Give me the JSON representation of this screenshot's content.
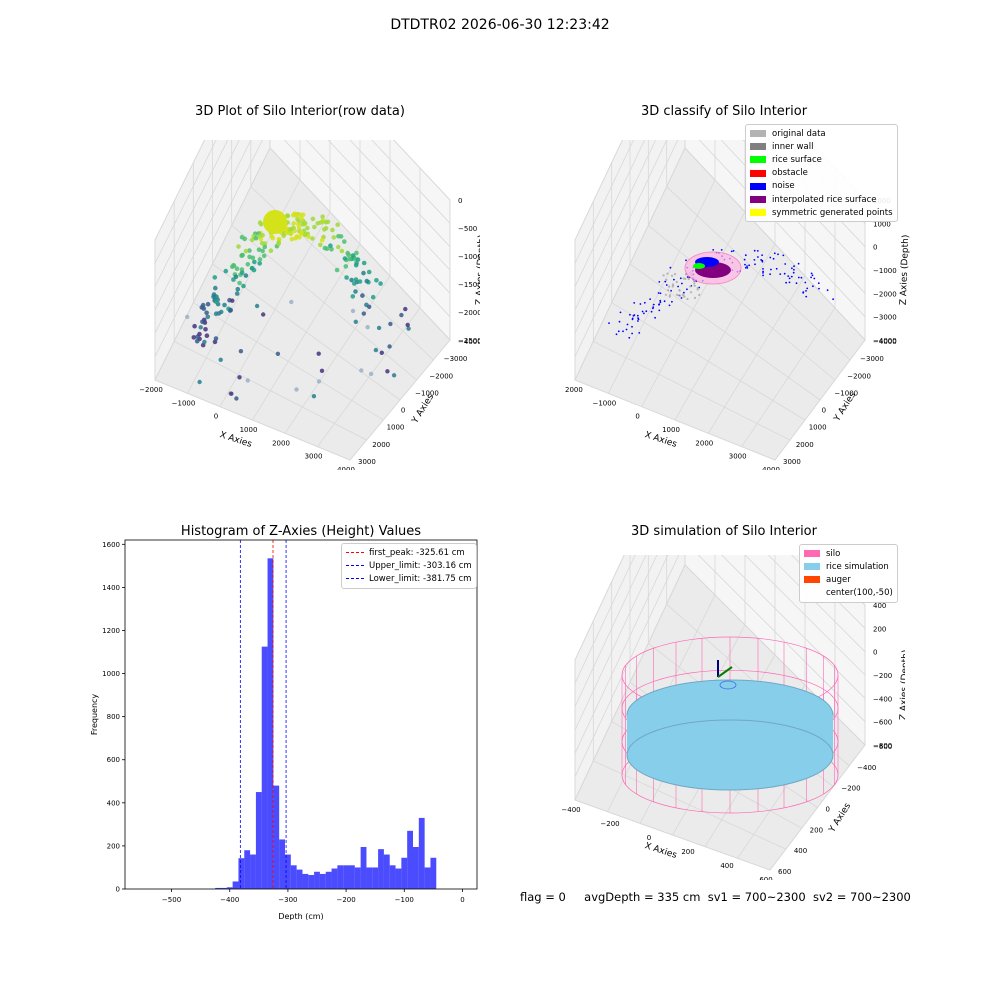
{
  "suptitle": "DTDTR02 2026-06-30 12:23:42",
  "panels": {
    "raw": {
      "title": "3D Plot of Silo Interior(row data)",
      "x_label": "X Axies",
      "y_label": "Y Axies",
      "z_label": "Z Axies (Depth)",
      "x_ticks": [
        "−2000",
        "−1000",
        "0",
        "1000",
        "2000",
        "3000",
        "4000"
      ],
      "y_ticks": [
        "−4000",
        "−3000",
        "−2000",
        "−1000",
        "0",
        "1000",
        "2000",
        "3000"
      ],
      "z_ticks": [
        "0",
        "−500",
        "−1000",
        "−1500",
        "−2000",
        "−2500"
      ]
    },
    "classify": {
      "title": "3D classify of Silo Interior",
      "x_label": "X Axies",
      "y_label": "Y Axies",
      "z_label": "Z Axies (Depth)",
      "x_ticks": [
        "−2000",
        "−1000",
        "0",
        "1000",
        "2000",
        "3000",
        "4000"
      ],
      "y_ticks": [
        "−4000",
        "−3000",
        "−2000",
        "−1000",
        "0",
        "1000",
        "2000",
        "3000"
      ],
      "z_ticks": [
        "2000",
        "1000",
        "0",
        "−1000",
        "−2000",
        "−3000",
        "−4000"
      ],
      "legend": [
        {
          "label": "original data",
          "color": "#b3b3b3"
        },
        {
          "label": "inner wall",
          "color": "#808080"
        },
        {
          "label": "rice surface",
          "color": "#00ff00"
        },
        {
          "label": "obstacle",
          "color": "#ff0000"
        },
        {
          "label": "noise",
          "color": "#0000ff"
        },
        {
          "label": "interpolated rice surface",
          "color": "#800080"
        },
        {
          "label": "symmetric generated points",
          "color": "#ffff00"
        }
      ]
    },
    "simulation": {
      "title": "3D simulation of Silo Interior",
      "x_label": "X Axies",
      "y_label": "Y Axies",
      "z_label": "Z Axies (Depth)",
      "x_ticks": [
        "−400",
        "−200",
        "0",
        "200",
        "400",
        "600"
      ],
      "y_ticks": [
        "−600",
        "−400",
        "−200",
        "0",
        "200",
        "400",
        "600"
      ],
      "z_ticks": [
        "400",
        "200",
        "0",
        "−200",
        "−400",
        "−600",
        "−800"
      ],
      "legend": [
        {
          "label": "silo",
          "color": "#ff69b4"
        },
        {
          "label": "rice simulation",
          "color": "#87ceeb"
        },
        {
          "label": "auger",
          "color": "#ff4500"
        },
        {
          "label": "center(100,-50)",
          "color": "transparent"
        }
      ]
    }
  },
  "status": {
    "flag": "flag = 0",
    "avg_depth": "avgDepth = 335 cm",
    "sv1": "sv1 = 700~2300",
    "sv2": "sv2 = 700~2300"
  },
  "chart_data": {
    "type": "bar",
    "title": "Histogram of Z-Axies (Height) Values",
    "xlabel": "Depth (cm)",
    "ylabel": "Frequency",
    "xlim": [
      -580,
      25
    ],
    "ylim": [
      0,
      1620
    ],
    "x_ticks": [
      -500,
      -400,
      -300,
      -200,
      -100,
      0
    ],
    "y_ticks": [
      0,
      200,
      400,
      600,
      800,
      1000,
      1200,
      1400,
      1600
    ],
    "bar_color": "#0000ff",
    "bins": [
      {
        "x0": -425,
        "x1": -415,
        "v": 5
      },
      {
        "x0": -415,
        "x1": -405,
        "v": 5
      },
      {
        "x0": -405,
        "x1": -395,
        "v": 8
      },
      {
        "x0": -395,
        "x1": -385,
        "v": 35
      },
      {
        "x0": -385,
        "x1": -375,
        "v": 143
      },
      {
        "x0": -375,
        "x1": -365,
        "v": 180
      },
      {
        "x0": -365,
        "x1": -355,
        "v": 160
      },
      {
        "x0": -355,
        "x1": -345,
        "v": 450
      },
      {
        "x0": -345,
        "x1": -335,
        "v": 1125
      },
      {
        "x0": -335,
        "x1": -325,
        "v": 1535
      },
      {
        "x0": -325,
        "x1": -315,
        "v": 480
      },
      {
        "x0": -315,
        "x1": -305,
        "v": 230
      },
      {
        "x0": -305,
        "x1": -295,
        "v": 160
      },
      {
        "x0": -295,
        "x1": -285,
        "v": 110
      },
      {
        "x0": -285,
        "x1": -275,
        "v": 90
      },
      {
        "x0": -275,
        "x1": -265,
        "v": 70
      },
      {
        "x0": -265,
        "x1": -255,
        "v": 65
      },
      {
        "x0": -255,
        "x1": -245,
        "v": 80
      },
      {
        "x0": -245,
        "x1": -235,
        "v": 70
      },
      {
        "x0": -235,
        "x1": -225,
        "v": 80
      },
      {
        "x0": -225,
        "x1": -215,
        "v": 95
      },
      {
        "x0": -215,
        "x1": -205,
        "v": 110
      },
      {
        "x0": -205,
        "x1": -195,
        "v": 110
      },
      {
        "x0": -195,
        "x1": -185,
        "v": 110
      },
      {
        "x0": -185,
        "x1": -175,
        "v": 100
      },
      {
        "x0": -175,
        "x1": -165,
        "v": 195
      },
      {
        "x0": -165,
        "x1": -155,
        "v": 100
      },
      {
        "x0": -155,
        "x1": -145,
        "v": 100
      },
      {
        "x0": -145,
        "x1": -135,
        "v": 185
      },
      {
        "x0": -135,
        "x1": -125,
        "v": 160
      },
      {
        "x0": -125,
        "x1": -115,
        "v": 110
      },
      {
        "x0": -115,
        "x1": -105,
        "v": 95
      },
      {
        "x0": -105,
        "x1": -95,
        "v": 145
      },
      {
        "x0": -95,
        "x1": -85,
        "v": 270
      },
      {
        "x0": -85,
        "x1": -75,
        "v": 195
      },
      {
        "x0": -75,
        "x1": -65,
        "v": 330
      },
      {
        "x0": -65,
        "x1": -55,
        "v": 100
      },
      {
        "x0": -55,
        "x1": -45,
        "v": 145
      }
    ],
    "vlines": [
      {
        "label": "first_peak: -325.61 cm",
        "x": -325.61,
        "color": "#ff0000"
      },
      {
        "label": "Upper_limit: -303.16 cm",
        "x": -303.16,
        "color": "#0000ff"
      },
      {
        "label": "Lower_limit: -381.75 cm",
        "x": -381.75,
        "color": "#0000ff"
      }
    ],
    "legend_position": "upper right"
  }
}
